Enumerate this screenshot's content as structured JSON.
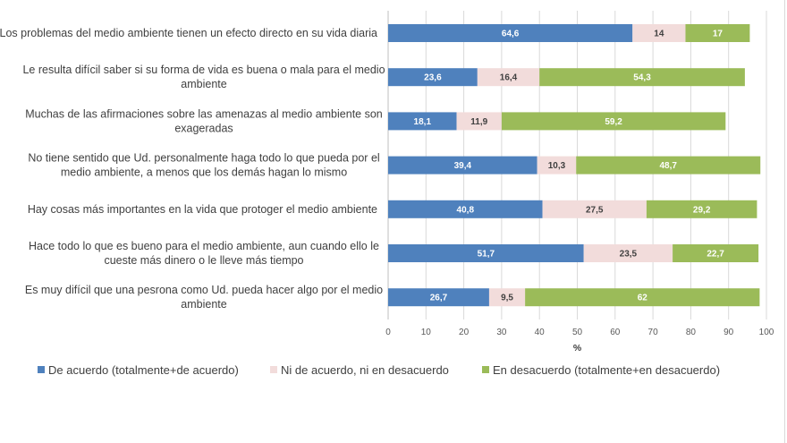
{
  "chart_data": {
    "type": "bar",
    "orientation": "horizontal",
    "stacked": true,
    "title": "",
    "xlabel": "%",
    "ylabel": "",
    "xlim": [
      0,
      100
    ],
    "xticks": [
      "0",
      "10",
      "20",
      "30",
      "40",
      "50",
      "60",
      "70",
      "80",
      "90",
      "100"
    ],
    "grid": true,
    "legend_position": "bottom",
    "categories": [
      [
        "Los problemas del medio ambiente tienen un efecto directo en su vida diaria"
      ],
      [
        "Le resulta difícil saber si su forma de vida es buena o mala para el medio",
        "ambiente"
      ],
      [
        "Muchas de las afirmaciones sobre las amenazas al medio ambiente son",
        "exageradas"
      ],
      [
        "No tiene sentido que Ud. personalmente haga todo lo que pueda por el",
        "medio ambiente, a menos que los demás hagan lo mismo"
      ],
      [
        "Hay cosas más importantes en la vida que protoger el medio ambiente"
      ],
      [
        "Hace todo lo que es bueno para el medio ambiente, aun cuando ello le",
        "cueste más dinero o le lleve más tiempo"
      ],
      [
        "Es muy difícil que una pesrona como Ud. pueda hacer algo por el medio",
        "ambiente"
      ]
    ],
    "series": [
      {
        "name": "De acuerdo (totalmente+de acuerdo)",
        "color": "#4f81bd",
        "label_color": "#ffffff",
        "values": [
          64.6,
          23.6,
          18.1,
          39.4,
          40.8,
          51.7,
          26.7
        ],
        "labels": [
          "64,6",
          "23,6",
          "18,1",
          "39,4",
          "40,8",
          "51,7",
          "26,7"
        ]
      },
      {
        "name": "Ni de acuerdo, ni en desacuerdo",
        "color": "#f2dcdb",
        "label_color": "#404040",
        "values": [
          14,
          16.4,
          11.9,
          10.3,
          27.5,
          23.5,
          9.5
        ],
        "labels": [
          "14",
          "16,4",
          "11,9",
          "10,3",
          "27,5",
          "23,5",
          "9,5"
        ]
      },
      {
        "name": "En desacuerdo (totalmente+en desacuerdo)",
        "color": "#9bbb59",
        "label_color": "#ffffff",
        "values": [
          17,
          54.3,
          59.2,
          48.7,
          29.2,
          22.7,
          62
        ],
        "labels": [
          "17",
          "54,3",
          "59,2",
          "48,7",
          "29,2",
          "22,7",
          "62"
        ]
      }
    ]
  }
}
